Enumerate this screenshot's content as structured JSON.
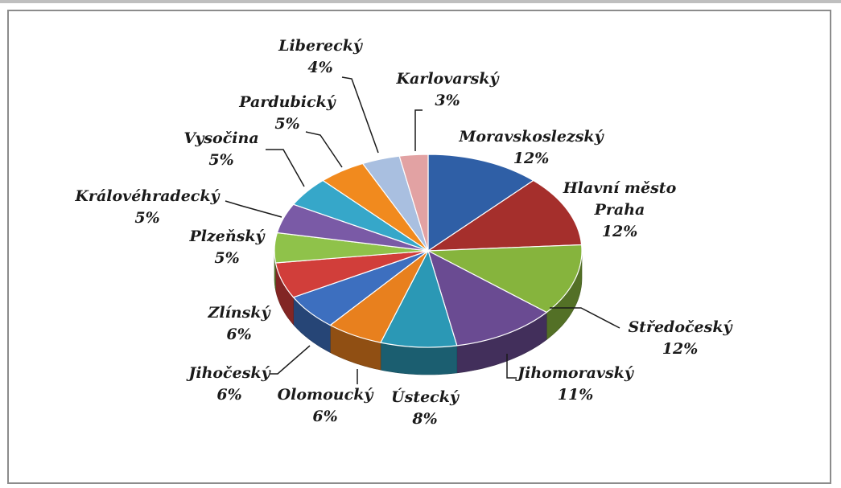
{
  "chart_data": {
    "type": "pie",
    "title": "",
    "slices": [
      {
        "name": "Moravskoslezský",
        "percent_label": "12%",
        "value": 12,
        "color": "#2f5fa6"
      },
      {
        "name": "Hlavní město Praha",
        "name_lines": [
          "Hlavní město",
          "Praha"
        ],
        "percent_label": "12%",
        "value": 12,
        "color": "#a52f2c"
      },
      {
        "name": "Středočeský",
        "percent_label": "12%",
        "value": 12,
        "color": "#86b43d"
      },
      {
        "name": "Jihomoravský",
        "percent_label": "11%",
        "value": 11,
        "color": "#6a4b92"
      },
      {
        "name": "Ústecký",
        "percent_label": "8%",
        "value": 8,
        "color": "#2b98b5"
      },
      {
        "name": "Olomoucký",
        "percent_label": "6%",
        "value": 6,
        "color": "#e8801e"
      },
      {
        "name": "Jihočeský",
        "percent_label": "6%",
        "value": 6,
        "color": "#3d6fbf"
      },
      {
        "name": "Zlínský",
        "percent_label": "6%",
        "value": 6,
        "color": "#d13e3a"
      },
      {
        "name": "Plzeňský",
        "percent_label": "5%",
        "value": 5,
        "color": "#8fc24a"
      },
      {
        "name": "Královéhradecký",
        "percent_label": "5%",
        "value": 5,
        "color": "#7a5aa6"
      },
      {
        "name": "Vysočina",
        "percent_label": "5%",
        "value": 5,
        "color": "#36a7c9"
      },
      {
        "name": "Pardubický",
        "percent_label": "5%",
        "value": 5,
        "color": "#f18a1e"
      },
      {
        "name": "Liberecký",
        "percent_label": "4%",
        "value": 4,
        "color": "#a9bfe0"
      },
      {
        "name": "Karlovarský",
        "percent_label": "3%",
        "value": 3,
        "color": "#e2a2a3"
      }
    ],
    "legend": "none",
    "style": "3d-tilted"
  }
}
